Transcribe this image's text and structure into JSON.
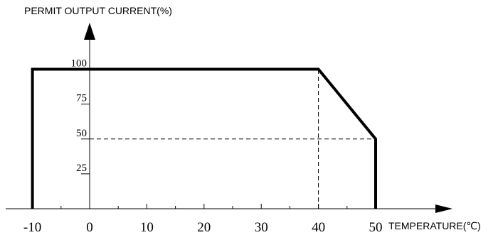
{
  "chart_data": {
    "type": "line",
    "title": "",
    "ylabel": "PERMIT OUTPUT CURRENT(%)",
    "xlabel": "TEMPERATURE(℃)",
    "x_ticks": [
      "-10",
      "0",
      "10",
      "20",
      "30",
      "40",
      "50"
    ],
    "x_tick_values": [
      -10,
      0,
      10,
      20,
      30,
      40,
      50
    ],
    "y_ticks": [
      "25",
      "50",
      "75",
      "100"
    ],
    "y_tick_values": [
      25,
      50,
      75,
      100
    ],
    "xlim": [
      -15,
      60
    ],
    "ylim": [
      0,
      120
    ],
    "grid": false,
    "series": [
      {
        "x": [
          -10,
          -10,
          40,
          50,
          50
        ],
        "y": [
          0,
          100,
          100,
          50,
          0
        ]
      }
    ],
    "reference_lines": [
      {
        "x": [
          40,
          40
        ],
        "y": [
          0,
          100
        ],
        "style": "dashed"
      },
      {
        "x": [
          0,
          50
        ],
        "y": [
          50,
          50
        ],
        "style": "dashed"
      }
    ]
  }
}
